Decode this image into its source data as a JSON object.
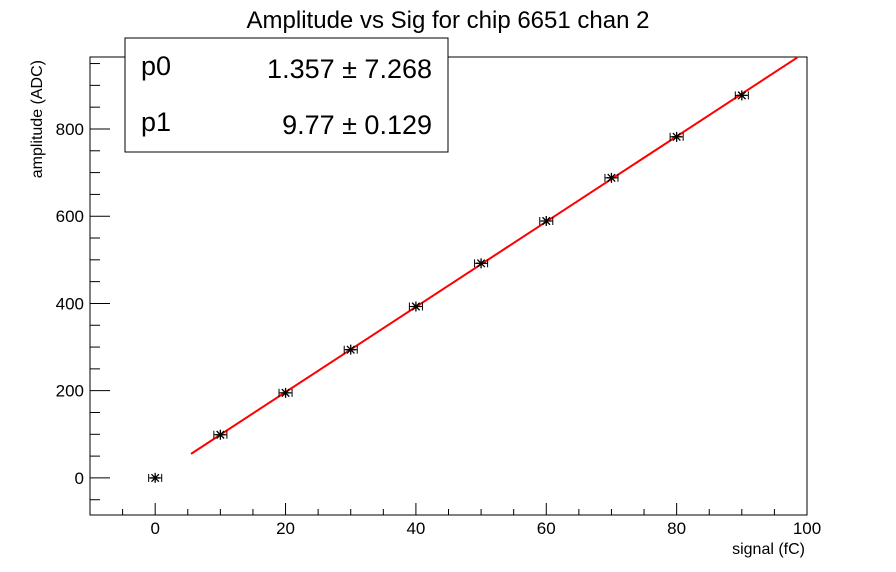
{
  "chart_data": {
    "type": "scatter",
    "title": "Amplitude vs Sig for chip 6651 chan 2",
    "xlabel": "signal (fC)",
    "ylabel": "amplitude (ADC)",
    "xlim": [
      -10,
      100
    ],
    "ylim": [
      -85,
      965
    ],
    "x_ticks": [
      0,
      20,
      40,
      60,
      80,
      100
    ],
    "y_ticks": [
      0,
      200,
      400,
      600,
      800
    ],
    "x_tick_labels": [
      "0",
      "20",
      "40",
      "60",
      "80",
      "100"
    ],
    "y_tick_labels": [
      "0",
      "200",
      "400",
      "600",
      "800"
    ],
    "grid": false,
    "series": [
      {
        "marker": "star",
        "color": "#000000",
        "x": [
          0,
          10,
          20,
          30,
          40,
          50,
          60,
          70,
          80,
          90
        ],
        "y": [
          0,
          99,
          195,
          294,
          393,
          492,
          589,
          688,
          782,
          877
        ],
        "x_err": 1
      }
    ],
    "fit": {
      "type": "linear",
      "color": "#ff0000",
      "x_range": [
        5.5,
        98.5
      ],
      "p0": 1.357,
      "p1": 9.77
    },
    "stats_box": {
      "position": "top-left",
      "rows": [
        {
          "name": "p0",
          "value": "1.357 ± 7.268"
        },
        {
          "name": "p1",
          "value": "9.77 ± 0.129"
        }
      ]
    }
  }
}
